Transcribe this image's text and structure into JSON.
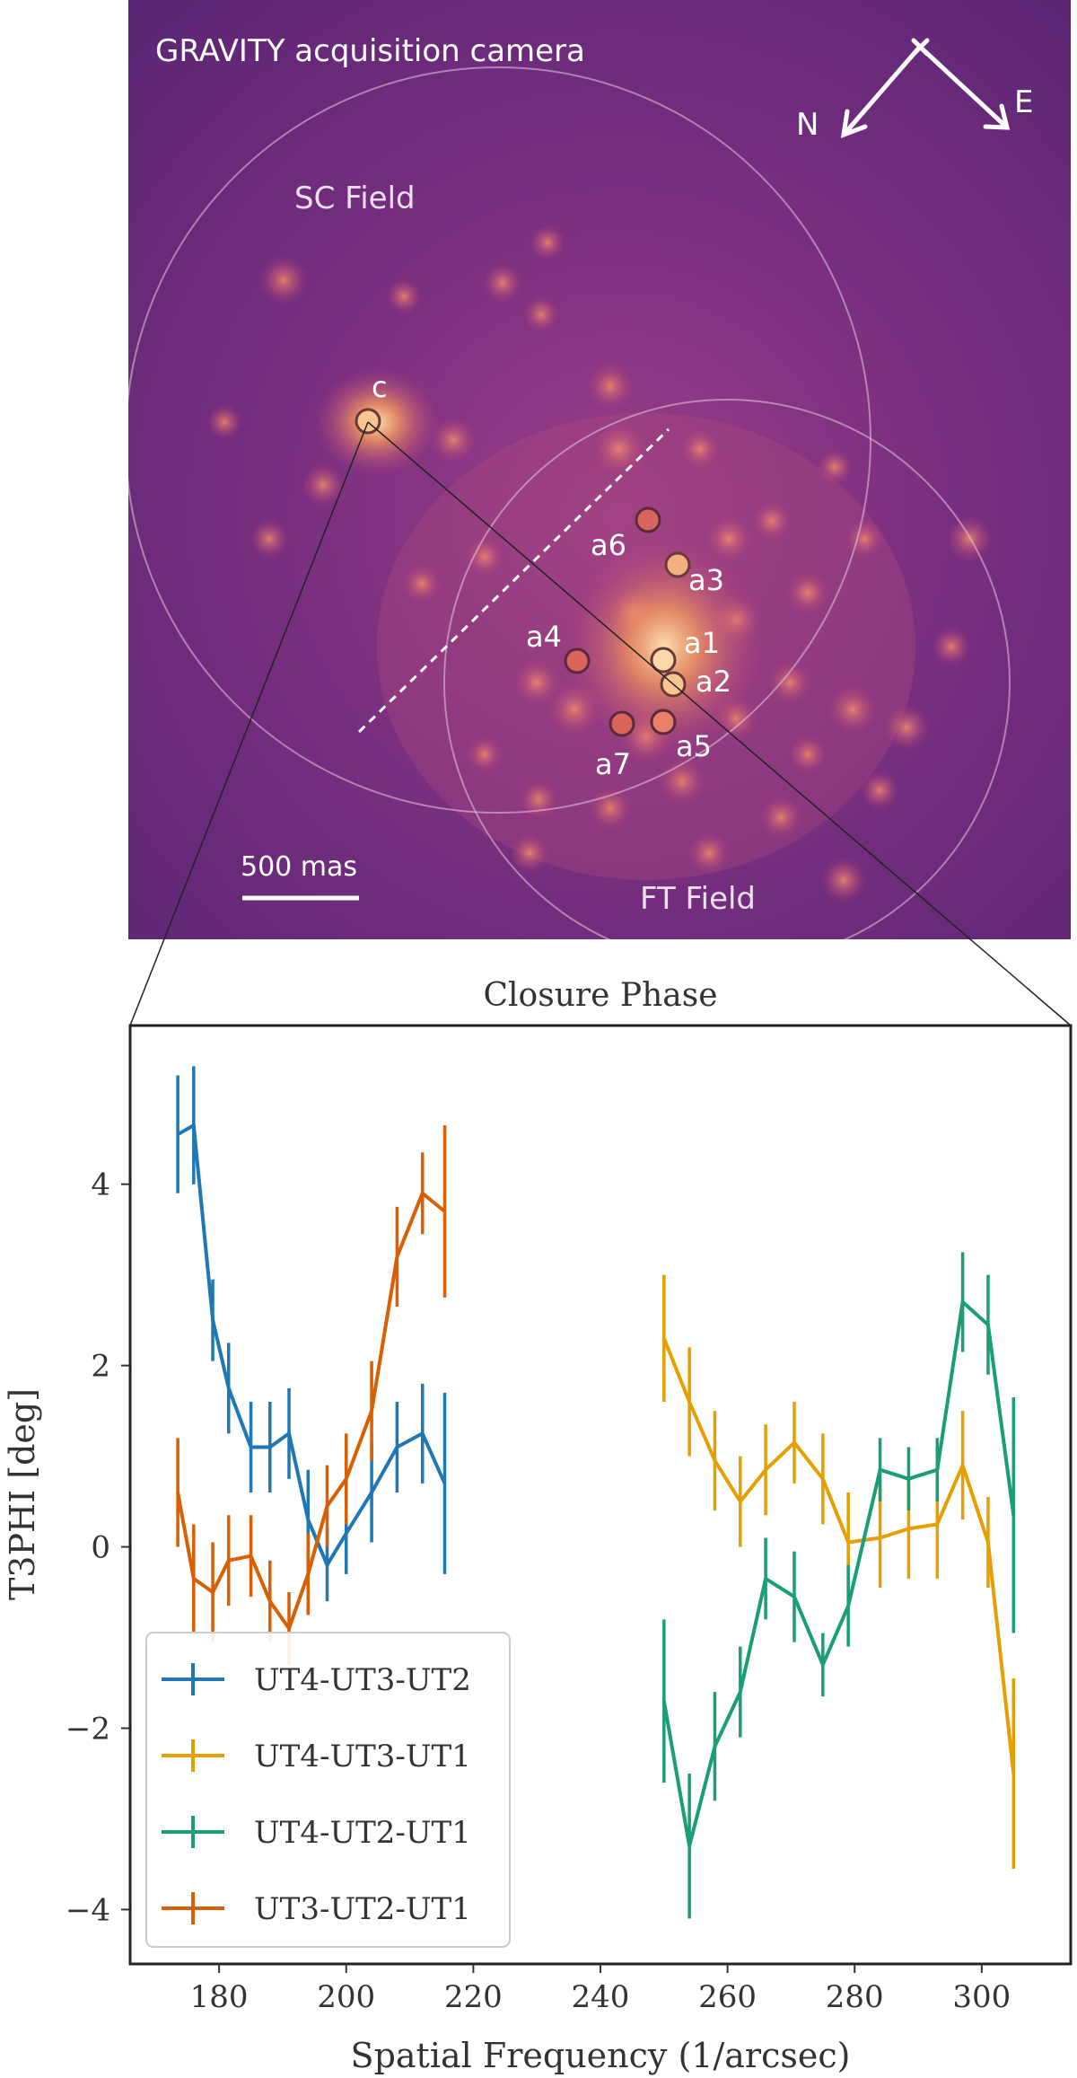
{
  "camera": {
    "title": "GRAVITY acquisition camera",
    "compass": {
      "north": "N",
      "east": "E"
    },
    "field_labels": {
      "sc": "SC Field",
      "ft": "FT Field"
    },
    "scale_bar": "500 mas",
    "sources": [
      "c",
      "a1",
      "a2",
      "a3",
      "a4",
      "a5",
      "a6",
      "a7"
    ],
    "colors": {
      "background": "#6a2a7a",
      "glow": "#f8a060",
      "ring": "#e8c8e0"
    }
  },
  "chart_data": {
    "type": "line",
    "title": "Closure Phase",
    "xlabel": "Spatial Frequency (1/arcsec)",
    "ylabel": "T3PHI [deg]",
    "xlim": [
      166,
      314
    ],
    "ylim": [
      -4.6,
      5.75
    ],
    "xticks": [
      180,
      200,
      220,
      240,
      260,
      280,
      300
    ],
    "yticks": [
      -4,
      -2,
      0,
      2,
      4
    ],
    "legend_position": "lower-left",
    "series": [
      {
        "name": "UT4-UT3-UT2",
        "color": "#1f77b4",
        "x": [
          173.5,
          176,
          179,
          181.5,
          185,
          188,
          191,
          194,
          197,
          200,
          204,
          208,
          212,
          215.5
        ],
        "y": [
          4.55,
          4.65,
          2.5,
          1.75,
          1.1,
          1.1,
          1.25,
          0.3,
          -0.2,
          0.15,
          0.6,
          1.1,
          1.25,
          0.7
        ],
        "err": [
          0.65,
          0.65,
          0.45,
          0.5,
          0.5,
          0.5,
          0.5,
          0.55,
          0.4,
          0.45,
          0.55,
          0.5,
          0.55,
          1.0
        ]
      },
      {
        "name": "UT4-UT3-UT1",
        "color": "#e69f00",
        "x": [
          250,
          254,
          258,
          262,
          266,
          270.5,
          275,
          279,
          284,
          288.5,
          293,
          297,
          301,
          305
        ],
        "y": [
          2.3,
          1.6,
          0.95,
          0.5,
          0.85,
          1.15,
          0.75,
          0.05,
          0.1,
          0.2,
          0.25,
          0.9,
          0.05,
          -2.5
        ],
        "err": [
          0.7,
          0.6,
          0.55,
          0.5,
          0.5,
          0.45,
          0.5,
          0.55,
          0.55,
          0.55,
          0.6,
          0.6,
          0.5,
          1.05
        ]
      },
      {
        "name": "UT4-UT2-UT1",
        "color": "#1a9e77",
        "x": [
          250,
          254,
          258,
          262,
          266,
          270.5,
          275,
          279,
          284,
          288.5,
          293,
          297,
          301,
          305
        ],
        "y": [
          -1.7,
          -3.3,
          -2.2,
          -1.6,
          -0.35,
          -0.55,
          -1.3,
          -0.65,
          0.85,
          0.75,
          0.85,
          2.7,
          2.45,
          0.35
        ],
        "err": [
          0.9,
          0.8,
          0.6,
          0.5,
          0.45,
          0.5,
          0.35,
          0.45,
          0.35,
          0.35,
          0.35,
          0.55,
          0.55,
          1.3
        ]
      },
      {
        "name": "UT3-UT2-UT1",
        "color": "#d95f02",
        "x": [
          173.5,
          176,
          179,
          181.5,
          185,
          188,
          191,
          194,
          197,
          200,
          204,
          208,
          212,
          215.5
        ],
        "y": [
          0.6,
          -0.35,
          -0.5,
          -0.15,
          -0.1,
          -0.6,
          -0.9,
          -0.3,
          0.45,
          0.75,
          1.5,
          3.2,
          3.9,
          3.7
        ],
        "err": [
          0.6,
          0.6,
          0.55,
          0.5,
          0.45,
          0.45,
          0.4,
          0.45,
          0.45,
          0.5,
          0.55,
          0.55,
          0.45,
          0.95
        ]
      }
    ]
  }
}
